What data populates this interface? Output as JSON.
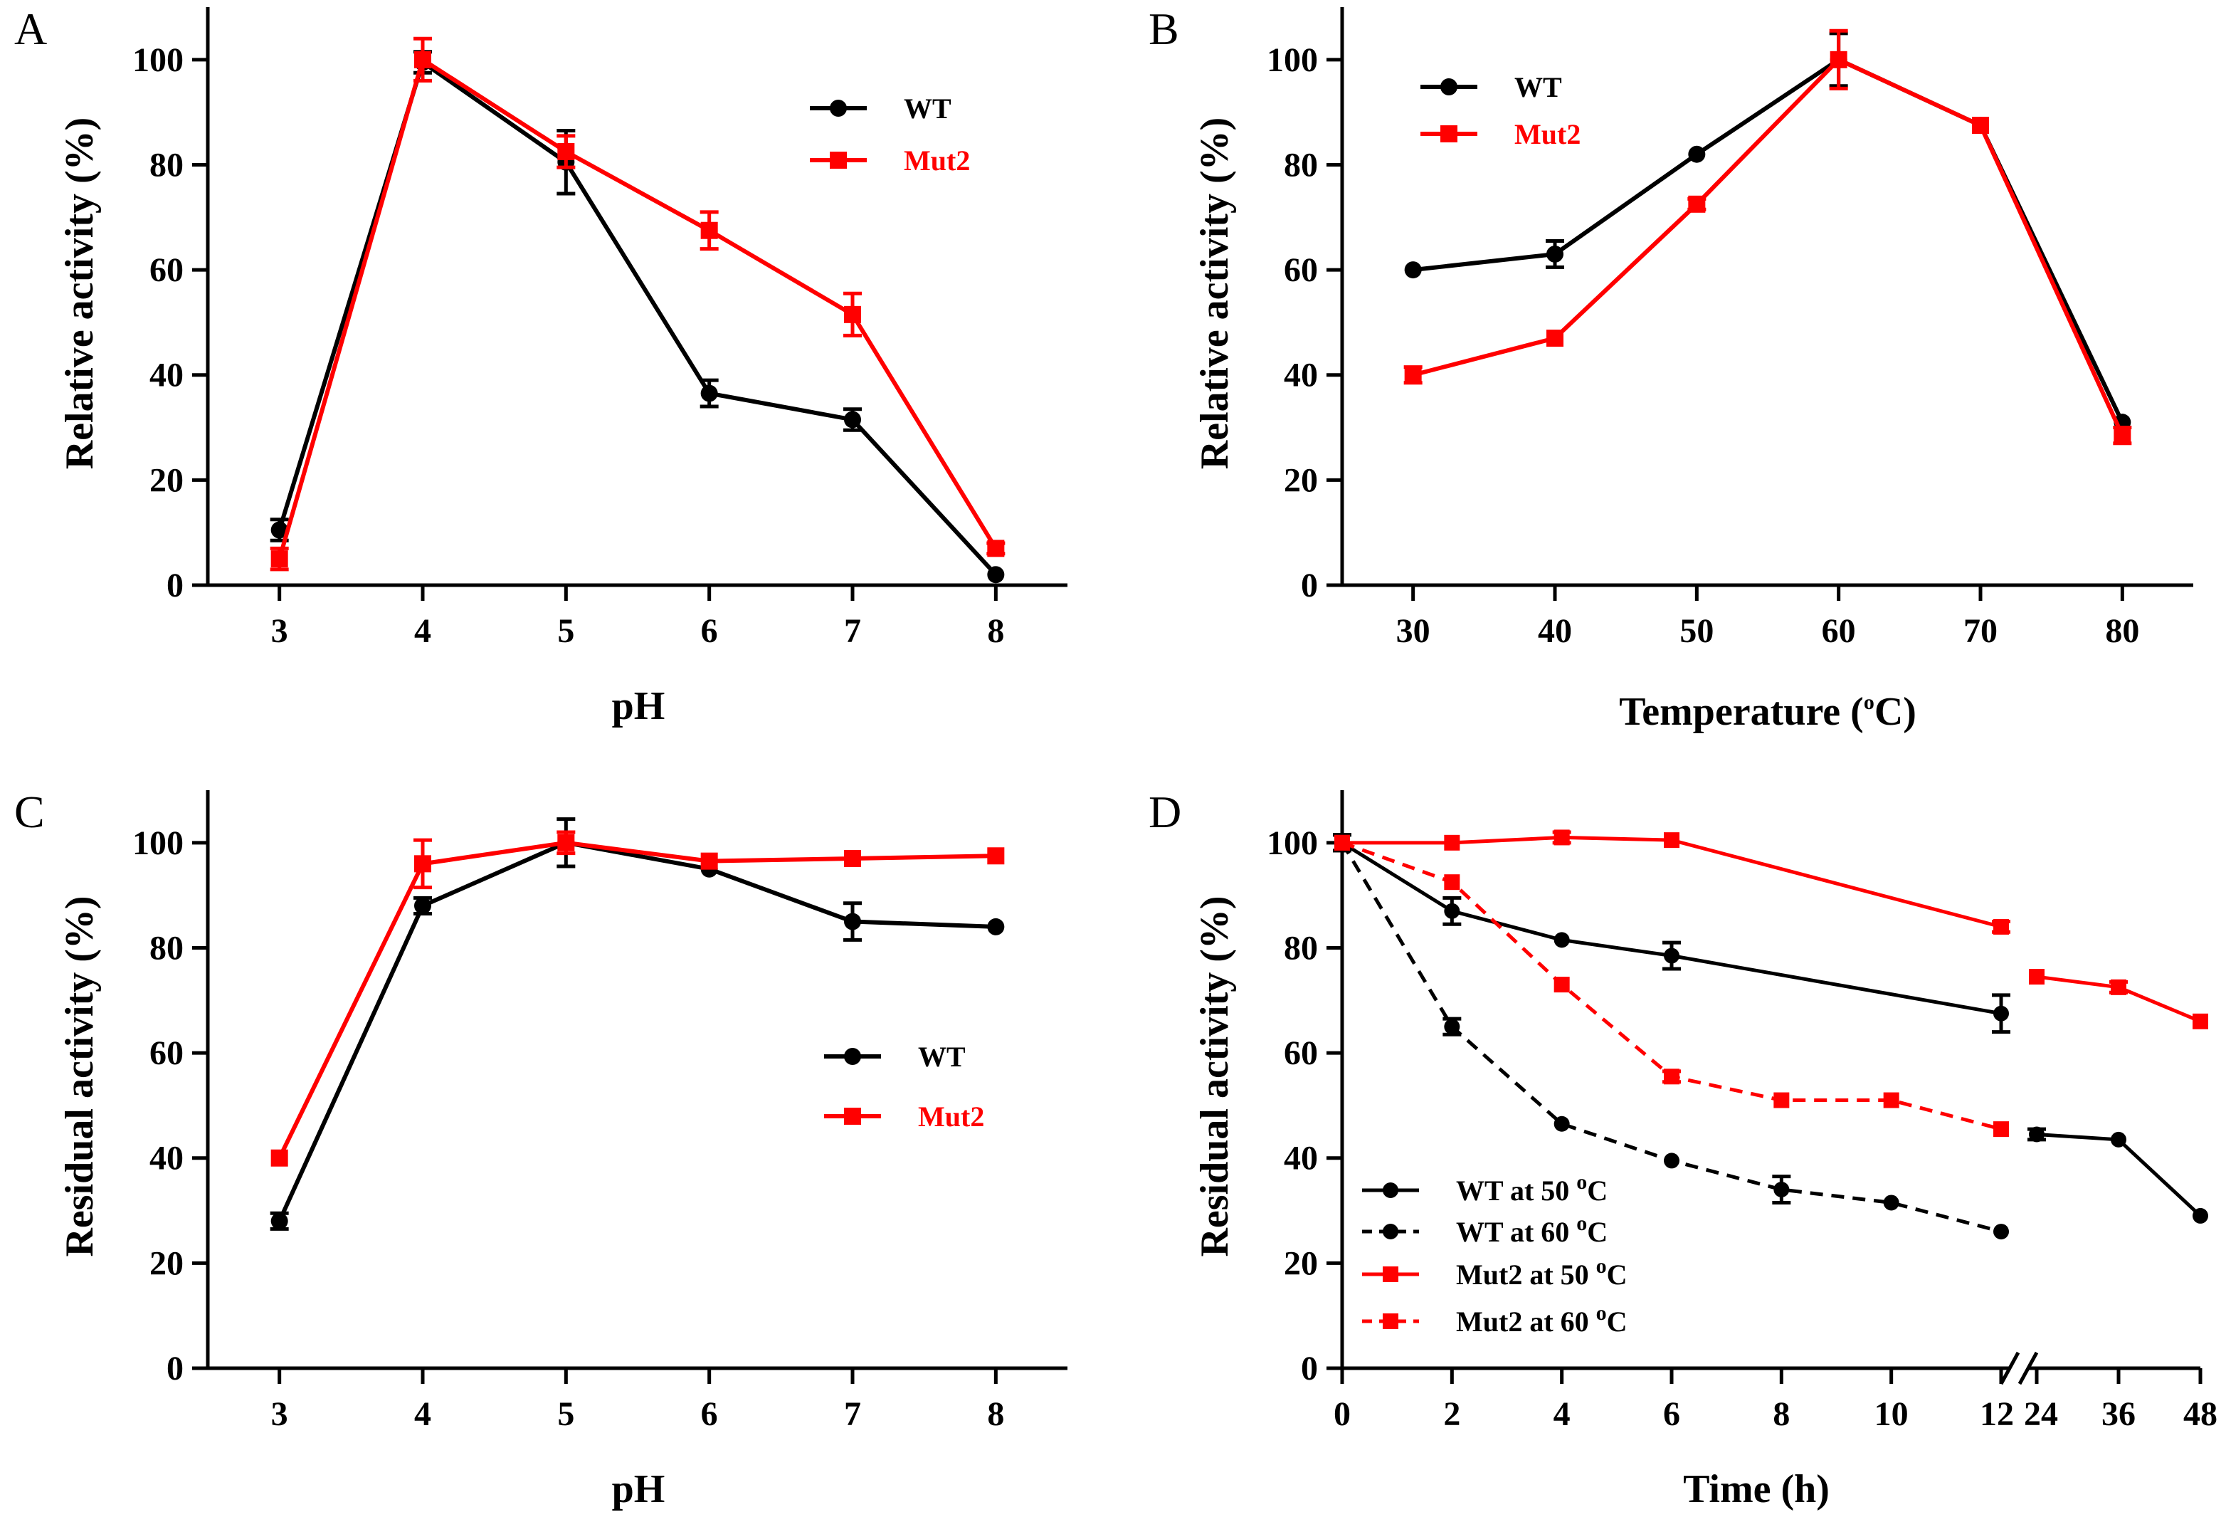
{
  "colors": {
    "wt": "#000000",
    "mut2": "#ff0000"
  },
  "chart_data": [
    {
      "panel": "A",
      "type": "line",
      "xlabel": "pH",
      "ylabel": "Relative activity (%)",
      "xlim": [
        2.5,
        8.5
      ],
      "ylim": [
        0,
        110
      ],
      "xticks": [
        3,
        4,
        5,
        6,
        7,
        8
      ],
      "yticks": [
        0,
        20,
        40,
        60,
        80,
        100
      ],
      "legend": "top-right",
      "series": [
        {
          "name": "WT",
          "marker": "circle",
          "color": "#000000",
          "dashed": false,
          "x": [
            3,
            4,
            5,
            6,
            7,
            8
          ],
          "y": [
            10.5,
            99.5,
            80.5,
            36.5,
            31.5,
            2
          ],
          "err": [
            2,
            2,
            6,
            2.5,
            2,
            0.5
          ]
        },
        {
          "name": "Mut2",
          "marker": "square",
          "color": "#ff0000",
          "dashed": false,
          "x": [
            3,
            4,
            5,
            6,
            7,
            8
          ],
          "y": [
            5,
            100,
            82.5,
            67.5,
            51.5,
            7
          ],
          "err": [
            2,
            4,
            3,
            3.5,
            4,
            1
          ]
        }
      ]
    },
    {
      "panel": "B",
      "type": "line",
      "xlabel": "Temperature (oC)",
      "xlabel_main": "Temperature (",
      "xlabel_sup": "o",
      "xlabel_end": "C)",
      "ylabel": "Relative activity (%)",
      "xlim": [
        25,
        85
      ],
      "ylim": [
        0,
        110
      ],
      "xticks": [
        30,
        40,
        50,
        60,
        70,
        80
      ],
      "yticks": [
        0,
        20,
        40,
        60,
        80,
        100
      ],
      "legend": "top-left",
      "series": [
        {
          "name": "WT",
          "marker": "circle",
          "color": "#000000",
          "dashed": false,
          "x": [
            30,
            40,
            50,
            60,
            70,
            80
          ],
          "y": [
            60,
            63,
            82,
            100,
            87.5,
            31
          ],
          "err": [
            0.5,
            2.5,
            0.5,
            5,
            0.5,
            0.5
          ]
        },
        {
          "name": "Mut2",
          "marker": "square",
          "color": "#ff0000",
          "dashed": false,
          "x": [
            30,
            40,
            50,
            60,
            70,
            80
          ],
          "y": [
            40,
            47,
            72.5,
            100,
            87.5,
            28.5
          ],
          "err": [
            1.5,
            0.5,
            1,
            5.5,
            0.5,
            1.5
          ]
        }
      ]
    },
    {
      "panel": "C",
      "type": "line",
      "xlabel": "pH",
      "ylabel": "Residual activity (%)",
      "xlim": [
        2.5,
        8.5
      ],
      "ylim": [
        0,
        110
      ],
      "xticks": [
        3,
        4,
        5,
        6,
        7,
        8
      ],
      "yticks": [
        0,
        20,
        40,
        60,
        80,
        100
      ],
      "legend": "center-right",
      "series": [
        {
          "name": "WT",
          "marker": "circle",
          "color": "#000000",
          "dashed": false,
          "x": [
            3,
            4,
            5,
            6,
            7,
            8
          ],
          "y": [
            28,
            88,
            100,
            95,
            85,
            84
          ],
          "err": [
            1.5,
            1.5,
            4.5,
            0.5,
            3.5,
            0.5
          ]
        },
        {
          "name": "Mut2",
          "marker": "square",
          "color": "#ff0000",
          "dashed": false,
          "x": [
            3,
            4,
            5,
            6,
            7,
            8
          ],
          "y": [
            40,
            96,
            100,
            96.5,
            97,
            97.5
          ],
          "err": [
            0.5,
            4.5,
            2,
            0.5,
            0.5,
            0.5
          ]
        }
      ]
    },
    {
      "panel": "D",
      "type": "line",
      "xlabel": "Time (h)",
      "ylabel": "Residual activity (%)",
      "ylim": [
        0,
        110
      ],
      "xticks": [
        0,
        2,
        4,
        6,
        8,
        10,
        12
      ],
      "xticks_right": [
        24,
        36,
        48
      ],
      "yticks": [
        0,
        20,
        40,
        60,
        80,
        100
      ],
      "axis_break": [
        12,
        24
      ],
      "legend": "bottom-left",
      "series": [
        {
          "name": "WT at 50 oC",
          "label_main": "WT at 50 ",
          "label_sup": "o",
          "label_end": "C",
          "marker": "circle",
          "color": "#000000",
          "dashed": false,
          "x": [
            0,
            2,
            4,
            6,
            12,
            24,
            36,
            48
          ],
          "y": [
            100,
            87,
            81.5,
            78.5,
            67.5,
            44.5,
            43.5,
            29
          ],
          "err": [
            1.5,
            2.5,
            0.5,
            2.5,
            3.5,
            1,
            0.5,
            0.5
          ]
        },
        {
          "name": "WT at 60 oC",
          "label_main": "WT at 60 ",
          "label_sup": "o",
          "label_end": "C",
          "marker": "circle",
          "color": "#000000",
          "dashed": true,
          "x": [
            0,
            2,
            4,
            6,
            8,
            10,
            12
          ],
          "y": [
            100,
            65,
            46.5,
            39.5,
            34,
            31.5,
            26
          ],
          "err": [
            1.5,
            1.5,
            0.5,
            0.5,
            2.5,
            0.5,
            0.5
          ]
        },
        {
          "name": "Mut2 at 50 oC",
          "label_main": "Mut2 at 50 ",
          "label_sup": "o",
          "label_end": "C",
          "marker": "square",
          "color": "#ff0000",
          "dashed": false,
          "x": [
            0,
            2,
            4,
            6,
            12,
            24,
            36,
            48
          ],
          "y": [
            100,
            100,
            101,
            100.5,
            84,
            74.5,
            72.5,
            66
          ],
          "err": [
            0.5,
            0.5,
            1,
            0.5,
            1,
            0.5,
            1,
            0.5
          ]
        },
        {
          "name": "Mut2 at 60 oC",
          "label_main": "Mut2 at 60 ",
          "label_sup": "o",
          "label_end": "C",
          "marker": "square",
          "color": "#ff0000",
          "dashed": true,
          "x": [
            0,
            2,
            4,
            6,
            8,
            10,
            12
          ],
          "y": [
            100,
            92.5,
            73,
            55.5,
            51,
            51,
            45.5
          ],
          "err": [
            0.5,
            0.5,
            0.5,
            1,
            0.5,
            0.5,
            0.5
          ]
        }
      ]
    }
  ]
}
